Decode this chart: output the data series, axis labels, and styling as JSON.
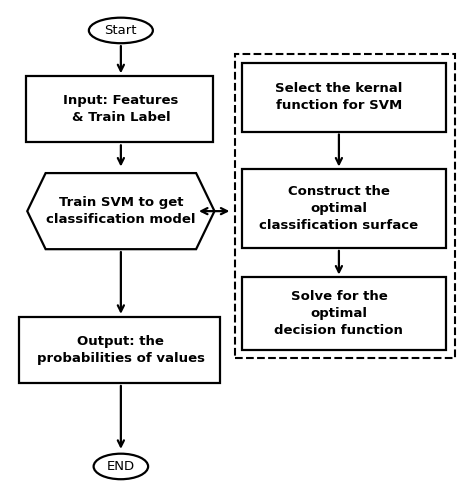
{
  "bg_color": "#ffffff",
  "line_color": "#000000",
  "text_color": "#000000",
  "start_label": "Start",
  "end_label": "END",
  "box1_label": "Input: Features\n& Train Label",
  "hex_label": "Train SVM to get\nclassification model",
  "box2_label": "Output: the\nprobabilities of values",
  "right_box1_label": "Select the kernal\nfunction for SVM",
  "right_box2_label": "Construct the\noptimal\nclassification surface",
  "right_box3_label": "Solve for the\noptimal\ndecision function",
  "font_size": 9.5,
  "lw": 1.6,
  "fig_w": 4.74,
  "fig_h": 4.91,
  "dpi": 100
}
